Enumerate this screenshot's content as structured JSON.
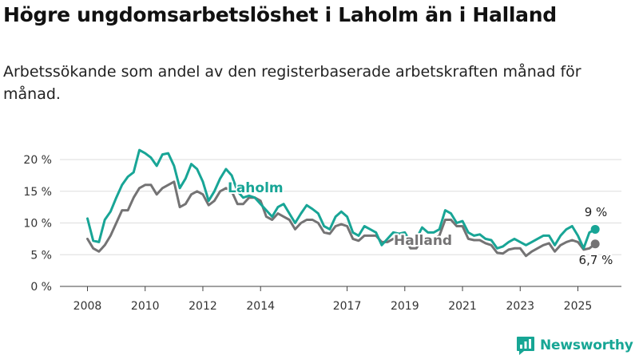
{
  "title": "Högre ungdomsarbetslöshet i Laholm än i Halland",
  "subtitle": "Arbetssökande som andel av den registerbaserade arbetskraften månad för månad.",
  "brand": "Newsworthy",
  "colors": {
    "laholm": "#18a596",
    "halland": "#747374",
    "grid": "#dddddd",
    "brand": "#17a695"
  },
  "chart_data": {
    "type": "line",
    "title": "Högre ungdomsarbetslöshet i Laholm än i Halland",
    "subtitle": "Arbetssökande som andel av den registerbaserade arbetskraften månad för månad.",
    "xlabel": "",
    "ylabel": "",
    "x_ticks": [
      "2008",
      "2010",
      "2012",
      "2014",
      "2017",
      "2019",
      "2021",
      "2023",
      "2025"
    ],
    "y_ticks": [
      "0 %",
      "5 %",
      "10 %",
      "15 %",
      "20 %"
    ],
    "ylim": [
      0,
      22
    ],
    "xlim": [
      2007.5,
      2026.3
    ],
    "grid": true,
    "legend": "inline labels",
    "end_labels": {
      "Laholm": "9 %",
      "Halland": "6,7 %"
    },
    "series": [
      {
        "name": "Laholm",
        "points": [
          [
            2008.0,
            10.7
          ],
          [
            2008.2,
            7.2
          ],
          [
            2008.4,
            7.0
          ],
          [
            2008.6,
            10.5
          ],
          [
            2008.8,
            11.8
          ],
          [
            2009.0,
            14.0
          ],
          [
            2009.2,
            16.0
          ],
          [
            2009.4,
            17.3
          ],
          [
            2009.6,
            18.0
          ],
          [
            2009.8,
            21.5
          ],
          [
            2010.0,
            21.0
          ],
          [
            2010.2,
            20.3
          ],
          [
            2010.4,
            19.0
          ],
          [
            2010.6,
            20.8
          ],
          [
            2010.8,
            21.0
          ],
          [
            2011.0,
            19.0
          ],
          [
            2011.2,
            15.5
          ],
          [
            2011.4,
            17.0
          ],
          [
            2011.6,
            19.3
          ],
          [
            2011.8,
            18.5
          ],
          [
            2012.0,
            16.5
          ],
          [
            2012.2,
            13.5
          ],
          [
            2012.4,
            15.0
          ],
          [
            2012.6,
            17.0
          ],
          [
            2012.8,
            18.5
          ],
          [
            2013.0,
            17.5
          ],
          [
            2013.2,
            15.0
          ],
          [
            2013.4,
            14.0
          ],
          [
            2013.6,
            14.3
          ],
          [
            2013.8,
            14.0
          ],
          [
            2014.0,
            13.0
          ],
          [
            2014.2,
            12.0
          ],
          [
            2014.4,
            11.0
          ],
          [
            2014.6,
            12.5
          ],
          [
            2014.8,
            13.0
          ],
          [
            2015.0,
            11.5
          ],
          [
            2015.2,
            10.0
          ],
          [
            2015.4,
            11.5
          ],
          [
            2015.6,
            12.8
          ],
          [
            2015.8,
            12.2
          ],
          [
            2016.0,
            11.5
          ],
          [
            2016.2,
            9.5
          ],
          [
            2016.4,
            9.0
          ],
          [
            2016.6,
            11.0
          ],
          [
            2016.8,
            11.8
          ],
          [
            2017.0,
            11.0
          ],
          [
            2017.2,
            8.5
          ],
          [
            2017.4,
            8.0
          ],
          [
            2017.6,
            9.5
          ],
          [
            2017.8,
            9.0
          ],
          [
            2018.0,
            8.5
          ],
          [
            2018.2,
            6.5
          ],
          [
            2018.4,
            7.5
          ],
          [
            2018.6,
            8.5
          ],
          [
            2018.8,
            8.3
          ],
          [
            2019.0,
            8.5
          ],
          [
            2019.2,
            7.0
          ],
          [
            2019.4,
            7.5
          ],
          [
            2019.6,
            9.3
          ],
          [
            2019.8,
            8.5
          ],
          [
            2020.0,
            8.5
          ],
          [
            2020.2,
            9.0
          ],
          [
            2020.4,
            12.0
          ],
          [
            2020.6,
            11.5
          ],
          [
            2020.8,
            10.0
          ],
          [
            2021.0,
            10.3
          ],
          [
            2021.2,
            8.5
          ],
          [
            2021.4,
            8.0
          ],
          [
            2021.6,
            8.2
          ],
          [
            2021.8,
            7.5
          ],
          [
            2022.0,
            7.3
          ],
          [
            2022.2,
            6.0
          ],
          [
            2022.4,
            6.3
          ],
          [
            2022.6,
            7.0
          ],
          [
            2022.8,
            7.5
          ],
          [
            2023.0,
            7.0
          ],
          [
            2023.2,
            6.5
          ],
          [
            2023.4,
            7.0
          ],
          [
            2023.6,
            7.5
          ],
          [
            2023.8,
            8.0
          ],
          [
            2024.0,
            8.0
          ],
          [
            2024.2,
            6.5
          ],
          [
            2024.4,
            8.0
          ],
          [
            2024.6,
            9.0
          ],
          [
            2024.8,
            9.5
          ],
          [
            2025.0,
            8.0
          ],
          [
            2025.2,
            6.0
          ],
          [
            2025.4,
            8.5
          ],
          [
            2025.6,
            9.0
          ]
        ]
      },
      {
        "name": "Halland",
        "points": [
          [
            2008.0,
            7.5
          ],
          [
            2008.2,
            6.0
          ],
          [
            2008.4,
            5.5
          ],
          [
            2008.6,
            6.5
          ],
          [
            2008.8,
            8.0
          ],
          [
            2009.0,
            10.0
          ],
          [
            2009.2,
            12.0
          ],
          [
            2009.4,
            12.0
          ],
          [
            2009.6,
            14.0
          ],
          [
            2009.8,
            15.5
          ],
          [
            2010.0,
            16.0
          ],
          [
            2010.2,
            16.0
          ],
          [
            2010.4,
            14.5
          ],
          [
            2010.6,
            15.5
          ],
          [
            2010.8,
            16.0
          ],
          [
            2011.0,
            16.5
          ],
          [
            2011.2,
            12.5
          ],
          [
            2011.4,
            13.0
          ],
          [
            2011.6,
            14.5
          ],
          [
            2011.8,
            15.0
          ],
          [
            2012.0,
            14.5
          ],
          [
            2012.2,
            12.8
          ],
          [
            2012.4,
            13.5
          ],
          [
            2012.6,
            15.0
          ],
          [
            2012.8,
            15.5
          ],
          [
            2013.0,
            15.0
          ],
          [
            2013.2,
            13.0
          ],
          [
            2013.4,
            13.0
          ],
          [
            2013.6,
            14.0
          ],
          [
            2013.8,
            14.0
          ],
          [
            2014.0,
            13.5
          ],
          [
            2014.2,
            11.0
          ],
          [
            2014.4,
            10.5
          ],
          [
            2014.6,
            11.5
          ],
          [
            2014.8,
            11.0
          ],
          [
            2015.0,
            10.5
          ],
          [
            2015.2,
            9.0
          ],
          [
            2015.4,
            10.0
          ],
          [
            2015.6,
            10.5
          ],
          [
            2015.8,
            10.5
          ],
          [
            2016.0,
            10.0
          ],
          [
            2016.2,
            8.5
          ],
          [
            2016.4,
            8.3
          ],
          [
            2016.6,
            9.5
          ],
          [
            2016.8,
            9.8
          ],
          [
            2017.0,
            9.5
          ],
          [
            2017.2,
            7.5
          ],
          [
            2017.4,
            7.2
          ],
          [
            2017.6,
            8.0
          ],
          [
            2017.8,
            8.0
          ],
          [
            2018.0,
            8.0
          ],
          [
            2018.2,
            7.0
          ],
          [
            2018.4,
            7.0
          ],
          [
            2018.6,
            7.5
          ],
          [
            2018.8,
            7.5
          ],
          [
            2019.0,
            7.5
          ],
          [
            2019.2,
            6.0
          ],
          [
            2019.4,
            6.0
          ],
          [
            2019.6,
            7.5
          ],
          [
            2019.8,
            7.5
          ],
          [
            2020.0,
            7.5
          ],
          [
            2020.2,
            8.0
          ],
          [
            2020.4,
            10.5
          ],
          [
            2020.6,
            10.5
          ],
          [
            2020.8,
            9.5
          ],
          [
            2021.0,
            9.5
          ],
          [
            2021.2,
            7.5
          ],
          [
            2021.4,
            7.3
          ],
          [
            2021.6,
            7.3
          ],
          [
            2021.8,
            6.8
          ],
          [
            2022.0,
            6.5
          ],
          [
            2022.2,
            5.3
          ],
          [
            2022.4,
            5.2
          ],
          [
            2022.6,
            5.8
          ],
          [
            2022.8,
            6.0
          ],
          [
            2023.0,
            6.0
          ],
          [
            2023.2,
            4.8
          ],
          [
            2023.4,
            5.5
          ],
          [
            2023.6,
            6.0
          ],
          [
            2023.8,
            6.5
          ],
          [
            2024.0,
            6.8
          ],
          [
            2024.2,
            5.5
          ],
          [
            2024.4,
            6.5
          ],
          [
            2024.6,
            7.0
          ],
          [
            2024.8,
            7.3
          ],
          [
            2025.0,
            7.0
          ],
          [
            2025.2,
            5.8
          ],
          [
            2025.4,
            6.0
          ],
          [
            2025.6,
            6.7
          ]
        ]
      }
    ]
  }
}
